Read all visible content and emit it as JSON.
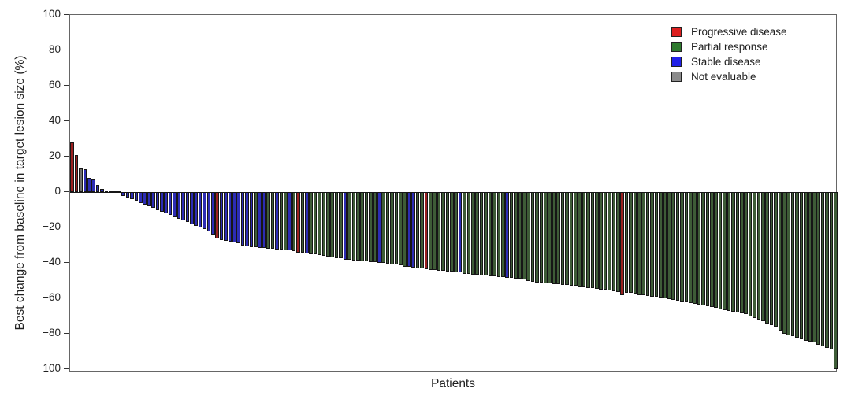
{
  "chart_data": {
    "type": "bar",
    "subtype": "waterfall",
    "title": "",
    "xlabel": "Patients",
    "ylabel": "Best change from baseline in target lesion size (%)",
    "ylim": [
      -100,
      100
    ],
    "yticks": [
      100,
      80,
      60,
      40,
      20,
      0,
      -20,
      -40,
      -60,
      -80,
      -100
    ],
    "ytick_labels": [
      "100",
      "80",
      "60",
      "40",
      "20",
      "0",
      "−20",
      "−40",
      "−60",
      "−80",
      "−100"
    ],
    "reference_lines": [
      20,
      -30
    ],
    "grid": "off",
    "legend_position": "top-right",
    "legend": [
      {
        "label": "Progressive disease",
        "code": "P",
        "swatch_color": "#dd1f1f"
      },
      {
        "label": "Partial response",
        "code": "PR",
        "swatch_color": "#2e7a2e"
      },
      {
        "label": "Stable disease",
        "code": "S",
        "swatch_color": "#2121e8"
      },
      {
        "label": "Not evaluable",
        "code": "NE",
        "swatch_color": "#8c8c8c"
      }
    ],
    "bar_fill_colors": {
      "P": "#9b2020",
      "PR": "#3e5c37",
      "S": "#2c2cb4",
      "NE": "#6f6f6f"
    },
    "bars": [
      [
        28,
        "P"
      ],
      [
        21,
        "P"
      ],
      [
        13.5,
        "NE"
      ],
      [
        13,
        "S"
      ],
      [
        8,
        "S"
      ],
      [
        7,
        "S"
      ],
      [
        4,
        "S"
      ],
      [
        2,
        "S"
      ],
      [
        0,
        "S"
      ],
      [
        0,
        "S"
      ],
      [
        0,
        "NE"
      ],
      [
        0,
        "S"
      ],
      [
        -2,
        "S"
      ],
      [
        -3,
        "S"
      ],
      [
        -4,
        "S"
      ],
      [
        -5,
        "S"
      ],
      [
        -6,
        "S"
      ],
      [
        -7,
        "S"
      ],
      [
        -8,
        "S"
      ],
      [
        -9,
        "S"
      ],
      [
        -10,
        "S"
      ],
      [
        -11,
        "S"
      ],
      [
        -12,
        "S"
      ],
      [
        -13,
        "S"
      ],
      [
        -14,
        "S"
      ],
      [
        -15,
        "S"
      ],
      [
        -16,
        "S"
      ],
      [
        -17,
        "S"
      ],
      [
        -18,
        "S"
      ],
      [
        -19,
        "S"
      ],
      [
        -20,
        "S"
      ],
      [
        -21,
        "S"
      ],
      [
        -22,
        "S"
      ],
      [
        -24,
        "S"
      ],
      [
        -26,
        "P"
      ],
      [
        -27,
        "S"
      ],
      [
        -27.5,
        "S"
      ],
      [
        -28,
        "S"
      ],
      [
        -28.5,
        "S"
      ],
      [
        -29,
        "S"
      ],
      [
        -30,
        "S"
      ],
      [
        -30.5,
        "S"
      ],
      [
        -31,
        "S"
      ],
      [
        -31,
        "PR"
      ],
      [
        -31.5,
        "S"
      ],
      [
        -31.5,
        "S"
      ],
      [
        -32,
        "PR"
      ],
      [
        -32,
        "PR"
      ],
      [
        -32.5,
        "S"
      ],
      [
        -32.5,
        "PR"
      ],
      [
        -33,
        "PR"
      ],
      [
        -33,
        "S"
      ],
      [
        -33.5,
        "PR"
      ],
      [
        -34,
        "P"
      ],
      [
        -34,
        "PR"
      ],
      [
        -34.5,
        "S"
      ],
      [
        -35,
        "PR"
      ],
      [
        -35,
        "PR"
      ],
      [
        -35.5,
        "PR"
      ],
      [
        -36,
        "PR"
      ],
      [
        -36.5,
        "PR"
      ],
      [
        -37,
        "PR"
      ],
      [
        -37.5,
        "PR"
      ],
      [
        -37.5,
        "PR"
      ],
      [
        -38,
        "S"
      ],
      [
        -38,
        "PR"
      ],
      [
        -38.5,
        "PR"
      ],
      [
        -38.5,
        "PR"
      ],
      [
        -39,
        "PR"
      ],
      [
        -39,
        "PR"
      ],
      [
        -39.5,
        "PR"
      ],
      [
        -39.5,
        "PR"
      ],
      [
        -40,
        "S"
      ],
      [
        -40,
        "PR"
      ],
      [
        -40.5,
        "PR"
      ],
      [
        -41,
        "PR"
      ],
      [
        -41,
        "PR"
      ],
      [
        -41.5,
        "PR"
      ],
      [
        -42,
        "PR"
      ],
      [
        -42,
        "S"
      ],
      [
        -42.5,
        "S"
      ],
      [
        -43,
        "PR"
      ],
      [
        -43,
        "PR"
      ],
      [
        -43.5,
        "P"
      ],
      [
        -44,
        "PR"
      ],
      [
        -44,
        "PR"
      ],
      [
        -44.5,
        "PR"
      ],
      [
        -44.5,
        "PR"
      ],
      [
        -45,
        "PR"
      ],
      [
        -45,
        "PR"
      ],
      [
        -45.5,
        "PR"
      ],
      [
        -45.5,
        "S"
      ],
      [
        -46,
        "PR"
      ],
      [
        -46,
        "PR"
      ],
      [
        -46.5,
        "PR"
      ],
      [
        -46.5,
        "PR"
      ],
      [
        -47,
        "PR"
      ],
      [
        -47,
        "PR"
      ],
      [
        -47.5,
        "PR"
      ],
      [
        -47.5,
        "PR"
      ],
      [
        -48,
        "PR"
      ],
      [
        -48,
        "PR"
      ],
      [
        -48.5,
        "S"
      ],
      [
        -48.5,
        "PR"
      ],
      [
        -49,
        "PR"
      ],
      [
        -49,
        "PR"
      ],
      [
        -49.5,
        "PR"
      ],
      [
        -50,
        "PR"
      ],
      [
        -50.5,
        "PR"
      ],
      [
        -51,
        "PR"
      ],
      [
        -51,
        "PR"
      ],
      [
        -51.5,
        "PR"
      ],
      [
        -51.5,
        "PR"
      ],
      [
        -52,
        "PR"
      ],
      [
        -52,
        "PR"
      ],
      [
        -52.5,
        "PR"
      ],
      [
        -52.5,
        "PR"
      ],
      [
        -53,
        "PR"
      ],
      [
        -53,
        "PR"
      ],
      [
        -53.5,
        "PR"
      ],
      [
        -53.5,
        "PR"
      ],
      [
        -54,
        "PR"
      ],
      [
        -54,
        "PR"
      ],
      [
        -54.5,
        "PR"
      ],
      [
        -55,
        "PR"
      ],
      [
        -55,
        "PR"
      ],
      [
        -55.5,
        "PR"
      ],
      [
        -56,
        "PR"
      ],
      [
        -56.5,
        "PR"
      ],
      [
        -58,
        "P"
      ],
      [
        -57,
        "PR"
      ],
      [
        -57,
        "PR"
      ],
      [
        -57.5,
        "PR"
      ],
      [
        -58,
        "PR"
      ],
      [
        -58,
        "PR"
      ],
      [
        -58.5,
        "PR"
      ],
      [
        -59,
        "PR"
      ],
      [
        -59,
        "PR"
      ],
      [
        -59.5,
        "PR"
      ],
      [
        -60,
        "PR"
      ],
      [
        -60.5,
        "PR"
      ],
      [
        -61,
        "PR"
      ],
      [
        -61.5,
        "PR"
      ],
      [
        -62,
        "PR"
      ],
      [
        -62,
        "PR"
      ],
      [
        -62.5,
        "PR"
      ],
      [
        -63,
        "PR"
      ],
      [
        -63.5,
        "PR"
      ],
      [
        -64,
        "PR"
      ],
      [
        -64.5,
        "PR"
      ],
      [
        -65,
        "PR"
      ],
      [
        -65.5,
        "PR"
      ],
      [
        -66,
        "PR"
      ],
      [
        -66.5,
        "PR"
      ],
      [
        -67,
        "PR"
      ],
      [
        -67.5,
        "PR"
      ],
      [
        -68,
        "PR"
      ],
      [
        -68.5,
        "PR"
      ],
      [
        -69,
        "PR"
      ],
      [
        -70,
        "PR"
      ],
      [
        -71,
        "PR"
      ],
      [
        -72,
        "PR"
      ],
      [
        -73,
        "PR"
      ],
      [
        -74,
        "PR"
      ],
      [
        -75,
        "PR"
      ],
      [
        -76,
        "PR"
      ],
      [
        -78,
        "PR"
      ],
      [
        -80,
        "PR"
      ],
      [
        -81,
        "PR"
      ],
      [
        -81.5,
        "PR"
      ],
      [
        -82,
        "PR"
      ],
      [
        -83,
        "PR"
      ],
      [
        -84,
        "PR"
      ],
      [
        -84.5,
        "PR"
      ],
      [
        -85,
        "PR"
      ],
      [
        -86,
        "PR"
      ],
      [
        -87,
        "PR"
      ],
      [
        -88,
        "PR"
      ],
      [
        -89,
        "PR"
      ],
      [
        -100,
        "PR"
      ]
    ]
  }
}
